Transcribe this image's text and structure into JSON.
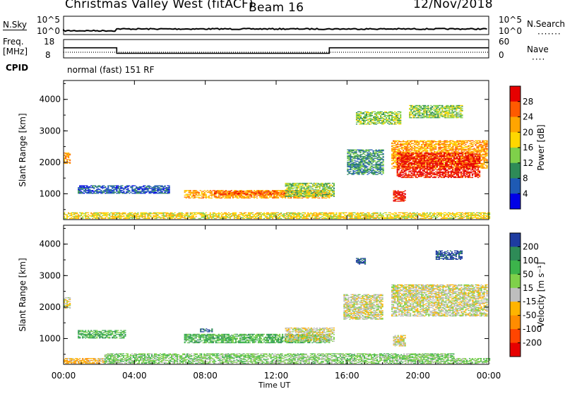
{
  "header": {
    "station": "Christmas Valley West (fitACF)",
    "beam": "Beam 16",
    "date": "12/Nov/2018"
  },
  "noise_panel": {
    "left_label": "N.Sky",
    "right_label": "N.Search",
    "left_ticks": [
      "10^5",
      "10^0"
    ],
    "right_ticks": [
      "10^5",
      "10^0"
    ]
  },
  "freq_panel": {
    "left_label_top": "Freq.",
    "left_label_unit": "[MHz]",
    "right_label": "Nave",
    "left_ticks": [
      "18",
      "8"
    ],
    "right_ticks": [
      "60",
      "0"
    ],
    "freq_series": {
      "x": [
        0,
        3,
        3,
        15,
        15,
        24
      ],
      "y": [
        13.5,
        13.5,
        10.5,
        10.5,
        13.5,
        13.5
      ]
    },
    "nave_series_level": [
      20,
      20,
      20
    ]
  },
  "cpid": {
    "label": "CPID",
    "value": "normal (fast) 151 RF"
  },
  "chart_data": [
    {
      "type": "heatmap",
      "name": "power",
      "ylabel": "Slant Range [km]",
      "ylim": [
        180,
        4600
      ],
      "yticks": [
        "1000",
        "2000",
        "3000",
        "4000"
      ],
      "xlabel": "Time UT",
      "xlim_hours": [
        0,
        24
      ],
      "xticks": [
        "00:00",
        "04:00",
        "08:00",
        "12:00",
        "16:00",
        "20:00",
        "00:00"
      ],
      "colorbar": {
        "label": "Power [dB]",
        "ticks": [
          "28",
          "24",
          "20",
          "16",
          "12",
          "8",
          "4"
        ],
        "colors": [
          "#e60000",
          "#ff5a00",
          "#ffa500",
          "#ffd700",
          "#7fd04a",
          "#2e8b57",
          "#1e5ab4",
          "#0000e6"
        ]
      },
      "regions": [
        {
          "t0": 0.0,
          "t1": 24.0,
          "r0": 200,
          "r1": 400,
          "level": 4
        },
        {
          "t0": 0.0,
          "t1": 0.4,
          "r0": 1950,
          "r1": 2300,
          "level": 5
        },
        {
          "t0": 0.8,
          "t1": 6.0,
          "r0": 1000,
          "r1": 1250,
          "level": 1
        },
        {
          "t0": 6.8,
          "t1": 15.0,
          "r0": 850,
          "r1": 1100,
          "level": 5
        },
        {
          "t0": 8.5,
          "t1": 12.5,
          "r0": 950,
          "r1": 1100,
          "level": 6
        },
        {
          "t0": 12.5,
          "t1": 15.3,
          "r0": 900,
          "r1": 1350,
          "level": 3
        },
        {
          "t0": 16.0,
          "t1": 18.0,
          "r0": 1600,
          "r1": 2400,
          "level": 2
        },
        {
          "t0": 16.5,
          "t1": 19.0,
          "r0": 3200,
          "r1": 3600,
          "level": 3
        },
        {
          "t0": 18.5,
          "t1": 23.9,
          "r0": 1800,
          "r1": 2700,
          "level": 5
        },
        {
          "t0": 18.8,
          "t1": 23.5,
          "r0": 1500,
          "r1": 2300,
          "level": 7
        },
        {
          "t0": 18.6,
          "t1": 19.3,
          "r0": 750,
          "r1": 1100,
          "level": 7
        },
        {
          "t0": 19.5,
          "t1": 22.5,
          "r0": 3400,
          "r1": 3800,
          "level": 3
        }
      ]
    },
    {
      "type": "heatmap",
      "name": "velocity",
      "ylabel": "Slant Range [km]",
      "ylim": [
        180,
        4600
      ],
      "yticks": [
        "1000",
        "2000",
        "3000",
        "4000"
      ],
      "xlabel": "Time UT",
      "xlim_hours": [
        0,
        24
      ],
      "xticks": [
        "00:00",
        "04:00",
        "08:00",
        "12:00",
        "16:00",
        "20:00",
        "00:00"
      ],
      "colorbar": {
        "label": "Velocity [m s⁻¹]",
        "ticks": [
          "200",
          "100",
          "50",
          "15",
          "-15",
          "-50",
          "-100",
          "-200"
        ],
        "colors": [
          "#1e3ca0",
          "#2e8b57",
          "#3cb44b",
          "#7fd04a",
          "#bebebe",
          "#ffb400",
          "#ff8c00",
          "#ff4500",
          "#e60000"
        ]
      },
      "regions": [
        {
          "t0": 0.0,
          "t1": 2.3,
          "r0": 200,
          "r1": 380,
          "level": 3
        },
        {
          "t0": 2.3,
          "t1": 22.0,
          "r0": 200,
          "r1": 520,
          "level": 5
        },
        {
          "t0": 22.0,
          "t1": 24.0,
          "r0": 200,
          "r1": 380,
          "level": 5
        },
        {
          "t0": 0.0,
          "t1": 0.4,
          "r0": 1950,
          "r1": 2300,
          "level": 4
        },
        {
          "t0": 0.8,
          "t1": 3.5,
          "r0": 1000,
          "r1": 1250,
          "level": 6
        },
        {
          "t0": 6.8,
          "t1": 15.0,
          "r0": 850,
          "r1": 1150,
          "level": 6
        },
        {
          "t0": 7.7,
          "t1": 8.4,
          "r0": 1200,
          "r1": 1300,
          "level": 8
        },
        {
          "t0": 12.5,
          "t1": 15.3,
          "r0": 900,
          "r1": 1350,
          "level": 4
        },
        {
          "t0": 15.8,
          "t1": 18.0,
          "r0": 1600,
          "r1": 2400,
          "level": 4
        },
        {
          "t0": 18.5,
          "t1": 23.9,
          "r0": 1700,
          "r1": 2700,
          "level": 4
        },
        {
          "t0": 18.6,
          "t1": 19.3,
          "r0": 750,
          "r1": 1100,
          "level": 4
        },
        {
          "t0": 16.5,
          "t1": 17.0,
          "r0": 3350,
          "r1": 3550,
          "level": 8
        },
        {
          "t0": 21.0,
          "t1": 22.5,
          "r0": 3500,
          "r1": 3800,
          "level": 8
        }
      ]
    }
  ]
}
